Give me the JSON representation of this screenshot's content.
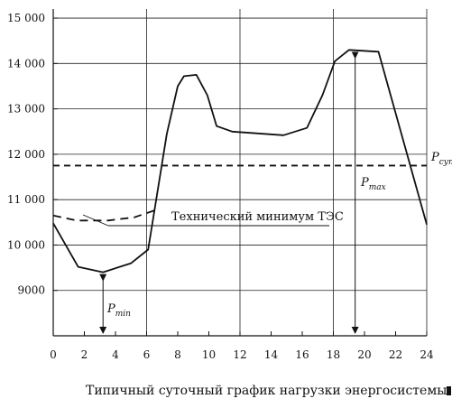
{
  "chart_data": {
    "type": "line",
    "caption": "Типичный суточный график нагрузки энергосистемы",
    "x_ticks": [
      "0",
      "2",
      "4",
      "6",
      "8",
      "10",
      "12",
      "14",
      "16",
      "18",
      "20",
      "22",
      "24"
    ],
    "y_ticks": [
      "9000",
      "10 000",
      "11 000",
      "12 000",
      "13 000",
      "14 000",
      "15 000"
    ],
    "xlim": [
      0,
      24
    ],
    "ylim": [
      8000,
      15200
    ],
    "grid": true,
    "series": [
      {
        "name": "",
        "style": "solid",
        "points": [
          [
            0,
            10480
          ],
          [
            1.6,
            9520
          ],
          [
            3.2,
            9400
          ],
          [
            5,
            9600
          ],
          [
            6.1,
            9900
          ],
          [
            7.3,
            12450
          ],
          [
            8,
            13500
          ],
          [
            8.4,
            13720
          ],
          [
            9.2,
            13750
          ],
          [
            9.9,
            13300
          ],
          [
            10.5,
            12620
          ],
          [
            11.5,
            12500
          ],
          [
            14.8,
            12420
          ],
          [
            16.3,
            12580
          ],
          [
            17.3,
            13300
          ],
          [
            18.1,
            14050
          ],
          [
            19,
            14300
          ],
          [
            20.9,
            14260
          ],
          [
            24,
            10450
          ]
        ]
      },
      {
        "name": "",
        "style": "dashed",
        "points": [
          [
            0,
            10650
          ],
          [
            1.5,
            10540
          ],
          [
            3.5,
            10540
          ],
          [
            5.2,
            10610
          ],
          [
            6.5,
            10760
          ]
        ]
      }
    ],
    "reference_lines": [
      {
        "y": 11750,
        "style": "dashed",
        "label_main": "P",
        "label_sub": "сут"
      }
    ],
    "annotations": {
      "tech_min_label": "Технический минимум ТЭС",
      "pmin_label_main": "P",
      "pmin_label_sub": "min",
      "pmax_label_main": "P",
      "pmax_label_sub": "max"
    },
    "pmin": {
      "x": 3.2,
      "y_value": 9400
    },
    "pmax": {
      "x": 19.4,
      "y_value": 14300
    }
  }
}
